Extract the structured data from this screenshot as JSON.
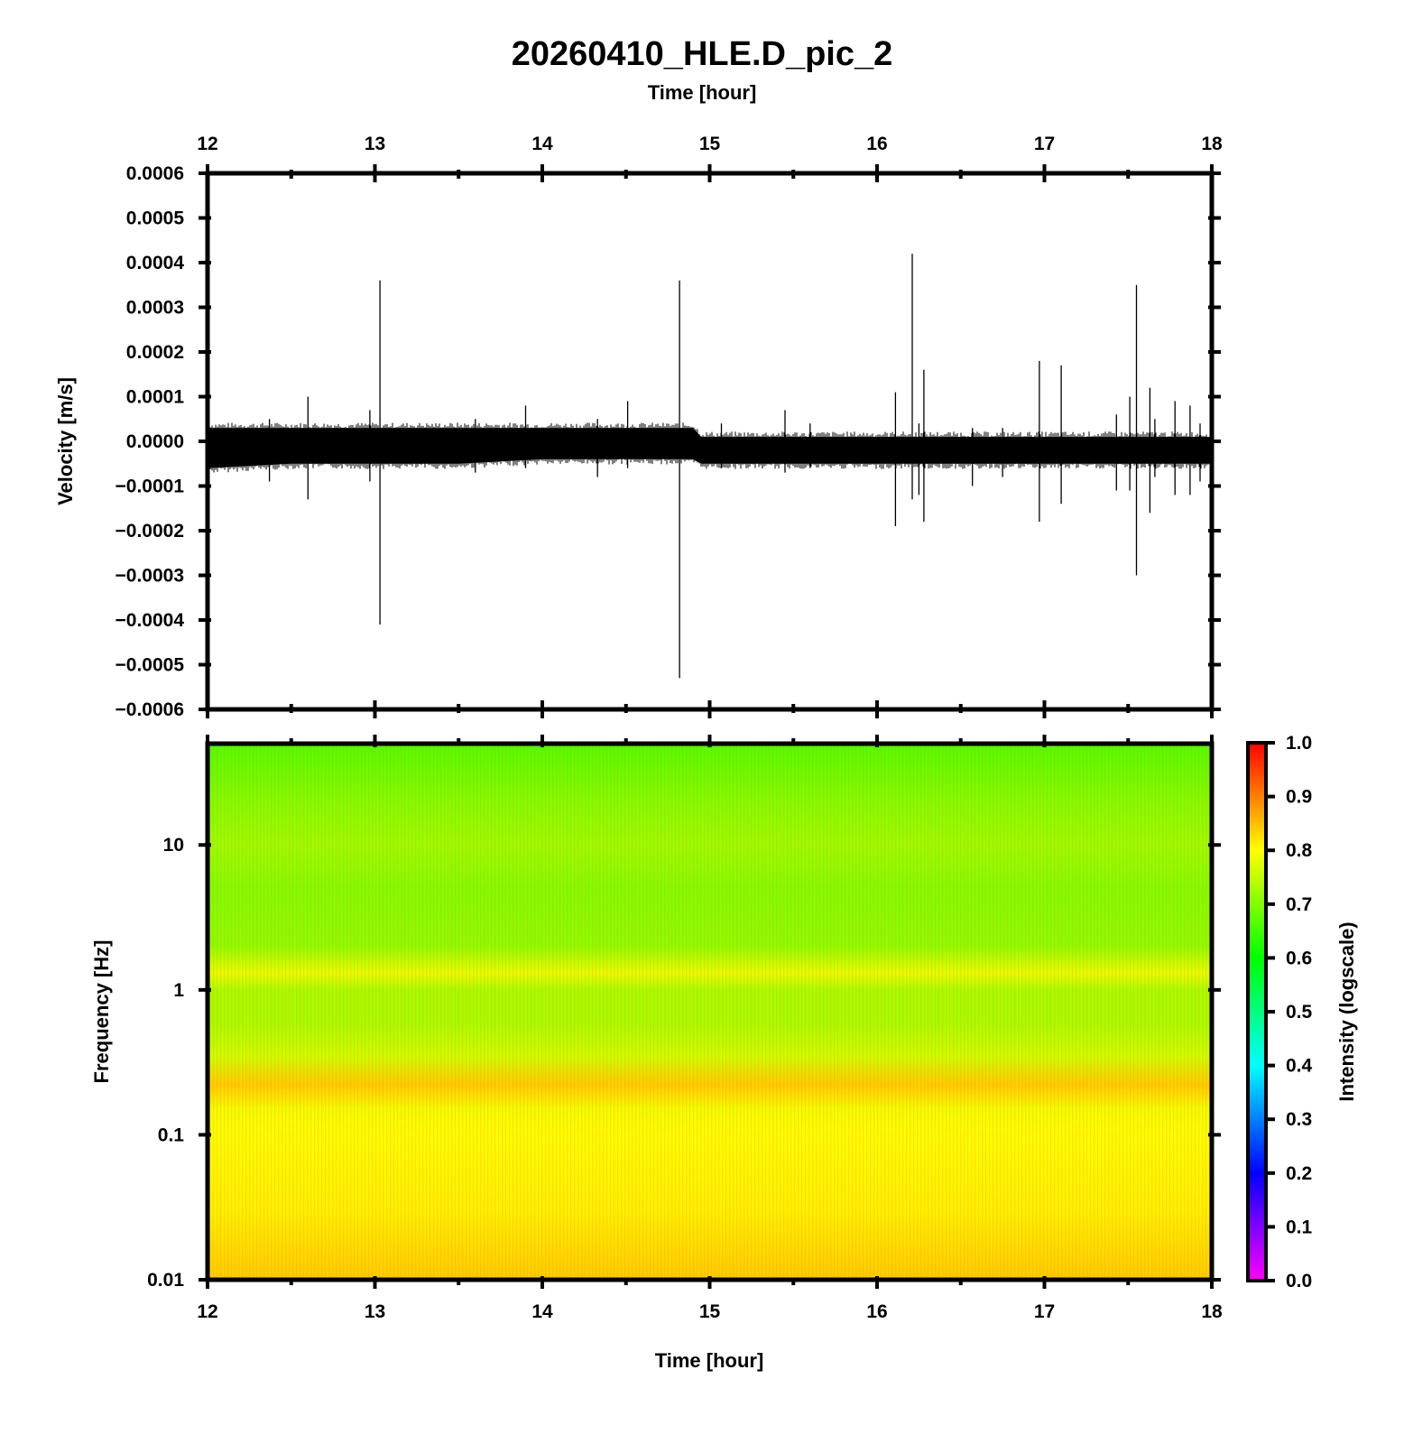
{
  "chart_data": [
    {
      "type": "line",
      "title": "20260410_HLE.D_pic_2",
      "xlabel": "Time [hour]",
      "ylabel": "Velocity [m/s]",
      "xlim": [
        12,
        18
      ],
      "ylim": [
        -0.0006,
        0.0006
      ],
      "x_ticks": [
        "12",
        "13",
        "14",
        "15",
        "16",
        "17",
        "18"
      ],
      "y_ticks": [
        "0.0006",
        "0.0005",
        "0.0004",
        "0.0003",
        "0.0002",
        "0.0001",
        "0.0000",
        "−0.0001",
        "−0.0002",
        "−0.0003",
        "−0.0004",
        "−0.0005",
        "−0.0006"
      ],
      "grid": false,
      "noise_band": [
        {
          "x": 12.0,
          "low": -6e-05,
          "high": 3e-05
        },
        {
          "x": 12.5,
          "low": -5e-05,
          "high": 3e-05
        },
        {
          "x": 13.0,
          "low": -5e-05,
          "high": 3e-05
        },
        {
          "x": 13.5,
          "low": -5e-05,
          "high": 3e-05
        },
        {
          "x": 14.0,
          "low": -4e-05,
          "high": 3e-05
        },
        {
          "x": 14.5,
          "low": -4e-05,
          "high": 3e-05
        },
        {
          "x": 14.9,
          "low": -4e-05,
          "high": 3e-05
        },
        {
          "x": 14.95,
          "low": -5e-05,
          "high": 1e-05
        },
        {
          "x": 15.5,
          "low": -5e-05,
          "high": 1e-05
        },
        {
          "x": 16.0,
          "low": -5e-05,
          "high": 1e-05
        },
        {
          "x": 16.5,
          "low": -5e-05,
          "high": 1e-05
        },
        {
          "x": 17.0,
          "low": -5e-05,
          "high": 1e-05
        },
        {
          "x": 17.5,
          "low": -5e-05,
          "high": 1e-05
        },
        {
          "x": 18.0,
          "low": -5e-05,
          "high": 1e-05
        }
      ],
      "spikes": [
        {
          "x": 12.37,
          "min": -9e-05,
          "max": 5e-05
        },
        {
          "x": 12.6,
          "min": -0.00013,
          "max": 0.0001
        },
        {
          "x": 12.97,
          "min": -9e-05,
          "max": 7e-05
        },
        {
          "x": 13.03,
          "min": -0.00041,
          "max": 0.00036
        },
        {
          "x": 13.6,
          "min": -7e-05,
          "max": 5e-05
        },
        {
          "x": 13.9,
          "min": -6e-05,
          "max": 8e-05
        },
        {
          "x": 14.33,
          "min": -8e-05,
          "max": 5e-05
        },
        {
          "x": 14.51,
          "min": -6e-05,
          "max": 9e-05
        },
        {
          "x": 14.82,
          "min": -0.00053,
          "max": 0.00036
        },
        {
          "x": 15.07,
          "min": -6e-05,
          "max": 4e-05
        },
        {
          "x": 15.45,
          "min": -7e-05,
          "max": 7e-05
        },
        {
          "x": 15.6,
          "min": -6e-05,
          "max": 4e-05
        },
        {
          "x": 16.11,
          "min": -0.00019,
          "max": 0.00011
        },
        {
          "x": 16.21,
          "min": -0.00013,
          "max": 0.00042
        },
        {
          "x": 16.25,
          "min": -0.00012,
          "max": 4e-05
        },
        {
          "x": 16.28,
          "min": -0.00018,
          "max": 0.00016
        },
        {
          "x": 16.57,
          "min": -0.0001,
          "max": 3e-05
        },
        {
          "x": 16.75,
          "min": -8e-05,
          "max": 3e-05
        },
        {
          "x": 16.97,
          "min": -0.00018,
          "max": 0.00018
        },
        {
          "x": 17.1,
          "min": -0.00014,
          "max": 0.00017
        },
        {
          "x": 17.43,
          "min": -0.00011,
          "max": 6e-05
        },
        {
          "x": 17.51,
          "min": -0.00011,
          "max": 0.0001
        },
        {
          "x": 17.55,
          "min": -0.0003,
          "max": 0.00035
        },
        {
          "x": 17.63,
          "min": -0.00016,
          "max": 0.00012
        },
        {
          "x": 17.66,
          "min": -8e-05,
          "max": 5e-05
        },
        {
          "x": 17.78,
          "min": -0.00012,
          "max": 9e-05
        },
        {
          "x": 17.87,
          "min": -0.00012,
          "max": 8e-05
        },
        {
          "x": 17.93,
          "min": -9e-05,
          "max": 4e-05
        }
      ]
    },
    {
      "type": "heatmap",
      "xlabel": "Time [hour]",
      "ylabel": "Frequency [Hz]",
      "xlim": [
        12,
        18
      ],
      "ylim": [
        0.01,
        50
      ],
      "yscale": "log",
      "x_ticks": [
        "12",
        "13",
        "14",
        "15",
        "16",
        "17",
        "18"
      ],
      "y_ticks": [
        {
          "value": 10,
          "label": "10"
        },
        {
          "value": 1,
          "label": "1"
        },
        {
          "value": 0.1,
          "label": "0.1"
        },
        {
          "value": 0.01,
          "label": "0.01"
        }
      ],
      "colorbar": {
        "label": "Intensity (logscale)",
        "range": [
          0,
          1
        ],
        "ticks": [
          "0.0",
          "0.1",
          "0.2",
          "0.3",
          "0.4",
          "0.5",
          "0.6",
          "0.7",
          "0.8",
          "0.9",
          "1.0"
        ],
        "colors": [
          "#ff00ff",
          "#0000ff",
          "#00ffff",
          "#00ff00",
          "#ffff00",
          "#ff0000"
        ]
      },
      "intensity_profile": [
        {
          "freq": 50,
          "intensity": 0.66
        },
        {
          "freq": 20,
          "intensity": 0.7
        },
        {
          "freq": 10,
          "intensity": 0.72
        },
        {
          "freq": 5,
          "intensity": 0.7
        },
        {
          "freq": 2,
          "intensity": 0.71
        },
        {
          "freq": 1.3,
          "intensity": 0.78
        },
        {
          "freq": 1,
          "intensity": 0.73
        },
        {
          "freq": 0.6,
          "intensity": 0.73
        },
        {
          "freq": 0.35,
          "intensity": 0.76
        },
        {
          "freq": 0.22,
          "intensity": 0.84
        },
        {
          "freq": 0.15,
          "intensity": 0.79
        },
        {
          "freq": 0.1,
          "intensity": 0.8
        },
        {
          "freq": 0.03,
          "intensity": 0.81
        },
        {
          "freq": 0.01,
          "intensity": 0.84
        }
      ]
    }
  ]
}
